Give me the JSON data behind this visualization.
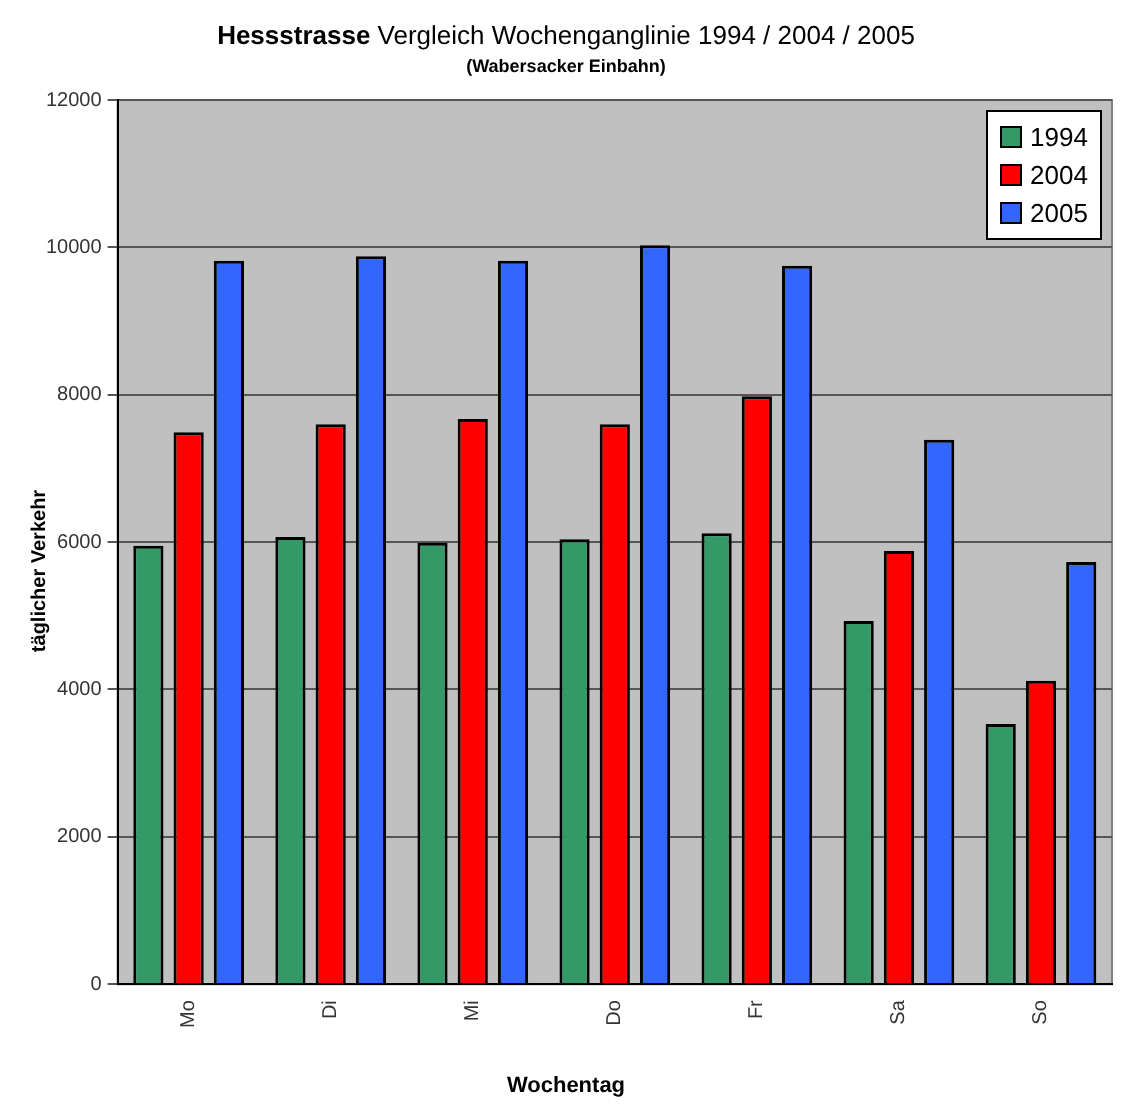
{
  "chart_data": {
    "type": "bar",
    "title": "Hessstrasse Vergleich Wochenganglinie 1994 / 2004 / 2005",
    "subtitle": "(Wabersacker Einbahn)",
    "xlabel": "Wochentag",
    "ylabel": "täglicher Verkehr",
    "categories": [
      "Mo",
      "Di",
      "Mi",
      "Do",
      "Fr",
      "Sa",
      "So"
    ],
    "series": [
      {
        "name": "1994",
        "color": "#339966",
        "values": [
          5950,
          6070,
          5990,
          6040,
          6120,
          4930,
          3530
        ]
      },
      {
        "name": "2004",
        "color": "#ff0000",
        "values": [
          7490,
          7600,
          7670,
          7600,
          7980,
          5880,
          4120
        ]
      },
      {
        "name": "2005",
        "color": "#3366ff",
        "values": [
          9820,
          9880,
          9820,
          10030,
          9750,
          7390,
          5730
        ]
      }
    ],
    "ylim": [
      0,
      12000
    ],
    "yticks": [
      0,
      2000,
      4000,
      6000,
      8000,
      10000,
      12000
    ],
    "grid": "y",
    "legend": "top right"
  }
}
